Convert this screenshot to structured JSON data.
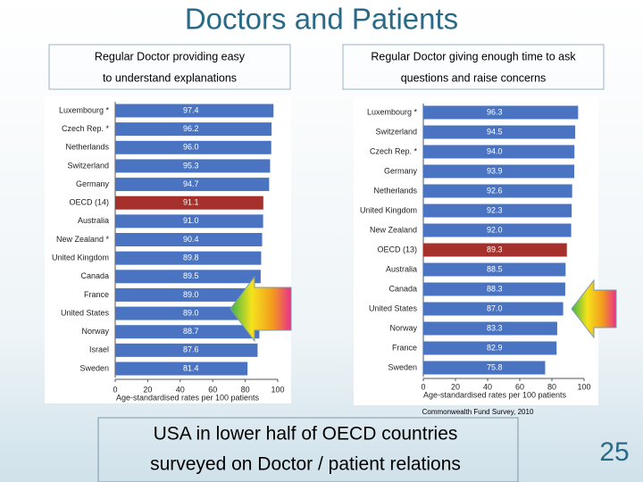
{
  "slide": {
    "title": "Doctors and Patients",
    "source": "Commonwealth Fund Survey, 2010",
    "caption": [
      "USA in lower half of OECD countries",
      "surveyed on Doctor / patient relations"
    ],
    "page_number": "25"
  },
  "chart_data": [
    {
      "type": "hbar",
      "title": [
        "Regular Doctor providing easy",
        "to understand explanations"
      ],
      "categories": [
        "Luxembourg *",
        "Czech Rep. *",
        "Netherlands",
        "Switzerland",
        "Germany",
        "OECD (14)",
        "Australia",
        "New Zealand *",
        "United Kingdom",
        "Canada",
        "France",
        "United States",
        "Norway",
        "Israel",
        "Sweden"
      ],
      "values": [
        97.4,
        96.2,
        96.0,
        95.3,
        94.7,
        91.1,
        91.0,
        90.4,
        89.8,
        89.5,
        89.0,
        89.0,
        88.7,
        87.6,
        81.4
      ],
      "value_labels": [
        "97.4",
        "96.2",
        "96.0",
        "95.3",
        "94.7",
        "91.1",
        "91.0",
        "90.4",
        "89.8",
        "89.5",
        "89.0",
        "89.0",
        "88.7",
        "87.6",
        "81.4"
      ],
      "colors": [
        "#4a74c2",
        "#4a74c2",
        "#4a74c2",
        "#4a74c2",
        "#4a74c2",
        "#a6302c",
        "#4a74c2",
        "#4a74c2",
        "#4a74c2",
        "#4a74c2",
        "#4a74c2",
        "#4a74c2",
        "#4a74c2",
        "#4a74c2",
        "#4a74c2"
      ],
      "xlim": [
        0,
        100
      ],
      "xticks": [
        0,
        20,
        40,
        60,
        80,
        100
      ],
      "x_label": "Age-standardised rates per 100 patients"
    },
    {
      "type": "hbar",
      "title": [
        "Regular Doctor giving enough time to ask",
        "questions and raise concerns"
      ],
      "categories": [
        "Luxembourg *",
        "Switzerland",
        "Czech Rep. *",
        "Germany",
        "Netherlands",
        "United Kingdom",
        "New Zealand",
        "OECD (13)",
        "Australia",
        "Canada",
        "United States",
        "Norway",
        "France",
        "Sweden"
      ],
      "values": [
        96.3,
        94.5,
        94.0,
        93.9,
        92.6,
        92.3,
        92.0,
        89.3,
        88.5,
        88.3,
        87.0,
        83.3,
        82.9,
        75.8
      ],
      "value_labels": [
        "96.3",
        "94.5",
        "94.0",
        "93.9",
        "92.6",
        "92.3",
        "92.0",
        "89.3",
        "88.5",
        "88.3",
        "87.0",
        "83.3",
        "82.9",
        "75.8"
      ],
      "colors": [
        "#4a74c2",
        "#4a74c2",
        "#4a74c2",
        "#4a74c2",
        "#4a74c2",
        "#4a74c2",
        "#4a74c2",
        "#a6302c",
        "#4a74c2",
        "#4a74c2",
        "#4a74c2",
        "#4a74c2",
        "#4a74c2",
        "#4a74c2"
      ],
      "xlim": [
        0,
        100
      ],
      "xticks": [
        0,
        20,
        40,
        60,
        80,
        100
      ],
      "x_label": "Age-standardised rates per 100 patients"
    }
  ]
}
